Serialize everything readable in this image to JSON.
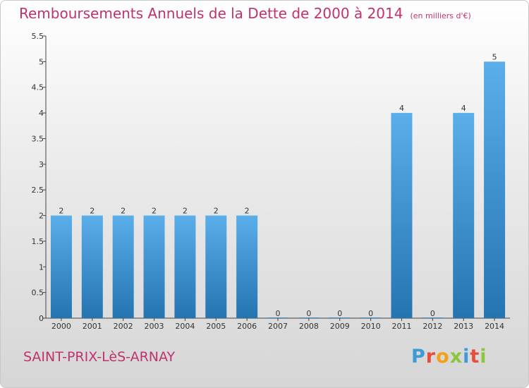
{
  "header": {
    "title": "Remboursements Annuels de la Dette de 2000 à 2014",
    "unit": "(en milliers d'€)"
  },
  "footer": {
    "city": "SAINT-PRIX-LèS-ARNAY",
    "logo_letters": [
      "P",
      "r",
      "o",
      "x",
      "i",
      "t",
      "i"
    ]
  },
  "colors": {
    "title": "#c0326e",
    "bar_top": "#5aaeea",
    "bar_bottom": "#2474b0"
  },
  "chart_data": {
    "type": "bar",
    "title": "Remboursements Annuels de la Dette de 2000 à 2014",
    "subtitle": "(en milliers d'€)",
    "xlabel": "",
    "ylabel": "",
    "categories": [
      "2000",
      "2001",
      "2002",
      "2003",
      "2004",
      "2005",
      "2006",
      "2007",
      "2008",
      "2009",
      "2010",
      "2011",
      "2012",
      "2013",
      "2014"
    ],
    "values": [
      2,
      2,
      2,
      2,
      2,
      2,
      2,
      0,
      0,
      0,
      0,
      4,
      0,
      4,
      5
    ],
    "ylim": [
      0,
      5.5
    ],
    "yticks": [
      "0",
      "0.5",
      "1",
      "1.5",
      "2",
      "2.5",
      "3",
      "3.5",
      "4",
      "4.5",
      "5",
      "5.5"
    ],
    "ytick_values": [
      0,
      0.5,
      1,
      1.5,
      2,
      2.5,
      3,
      3.5,
      4,
      4.5,
      5,
      5.5
    ],
    "grid": false,
    "legend": "none"
  }
}
